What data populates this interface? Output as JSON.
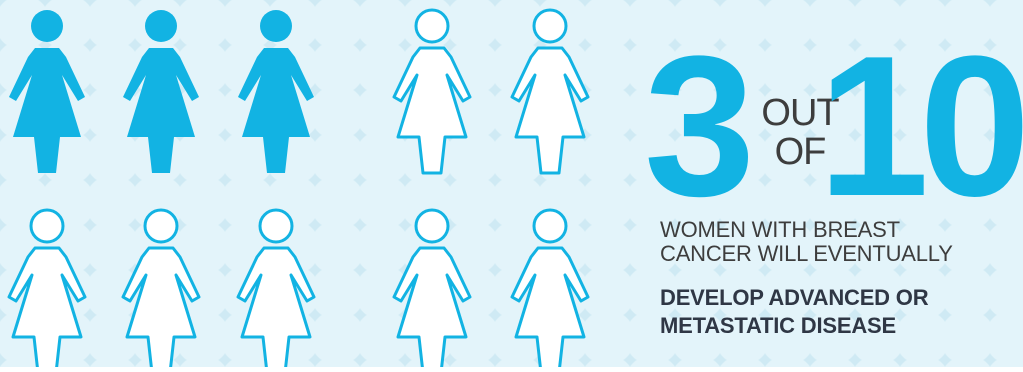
{
  "figures": {
    "total": 10,
    "highlighted": 3,
    "fill_color": "#12b3e3",
    "outline_color": "#12b3e3",
    "empty_fill": "#ffffff",
    "icon": "woman-icon"
  },
  "stat": {
    "numerator": "3",
    "out": "OUT",
    "of": "OF",
    "denominator": "10",
    "accent_color": "#12b3e3"
  },
  "caption": {
    "line1": "WOMEN WITH BREAST",
    "line2": "CANCER WILL EVENTUALLY",
    "bold_line1": "DEVELOP ADVANCED OR",
    "bold_line2": "METASTATIC DISEASE"
  }
}
